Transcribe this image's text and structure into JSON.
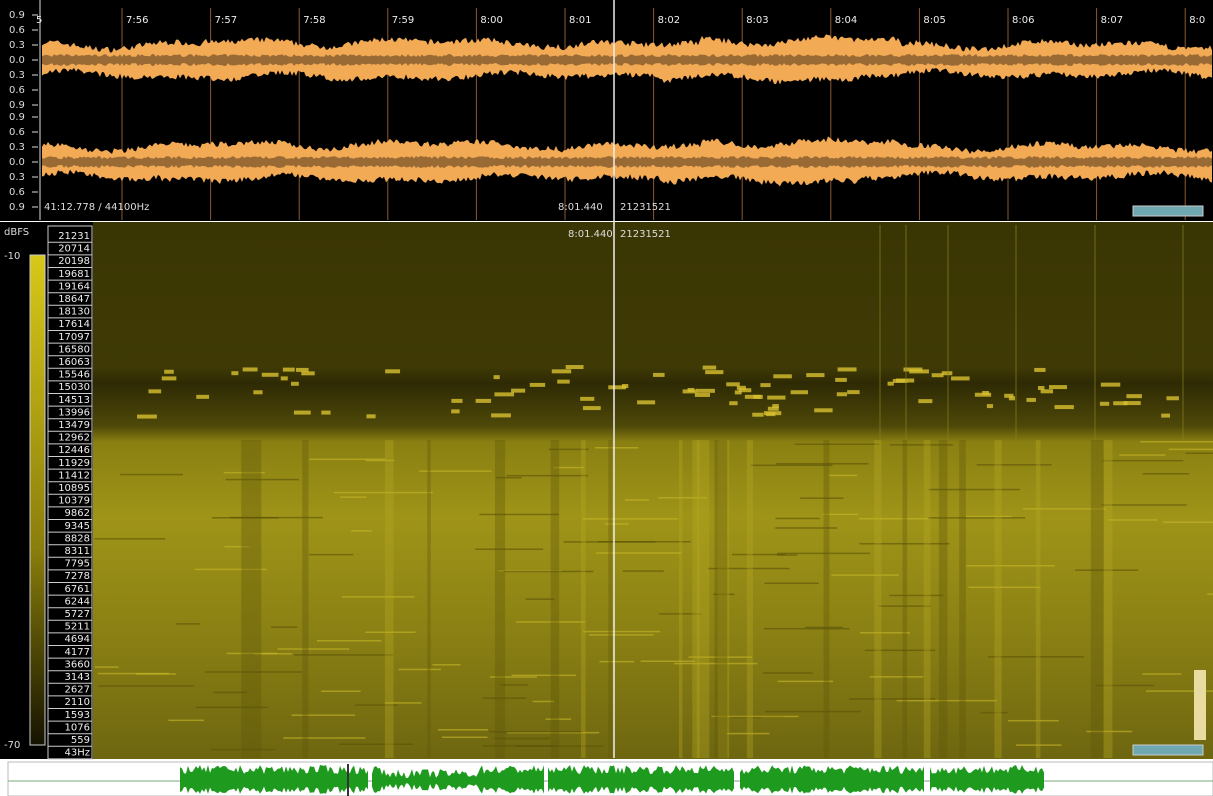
{
  "ruler": {
    "labels": [
      "5",
      "7:56",
      "7:57",
      "7:58",
      "7:59",
      "8:00",
      "8:01",
      "8:02",
      "8:03",
      "8:04",
      "8:05",
      "8:06",
      "8:07",
      "8:0"
    ]
  },
  "waveform": {
    "scale_top": [
      "0.9",
      "0.6",
      "0.3",
      "0.0",
      "0.3",
      "0.6",
      "0.9"
    ],
    "scale_bottom": [
      "0.9",
      "0.6",
      "0.3",
      "0.0",
      "0.3",
      "0.6",
      "0.9"
    ],
    "position": "41:12.778 / 44100Hz",
    "cursor_time": "8:01.440",
    "cursor_frame": "21231521"
  },
  "spectrogram": {
    "unit": "dBFS",
    "db_max": "-10",
    "db_min": "-70",
    "cursor_time": "8:01.440",
    "cursor_frame": "21231521",
    "freq_labels": [
      "21231",
      "20714",
      "20198",
      "19681",
      "19164",
      "18647",
      "18130",
      "17614",
      "17097",
      "16580",
      "16063",
      "15546",
      "15030",
      "14513",
      "13996",
      "13479",
      "12962",
      "12446",
      "11929",
      "11412",
      "10895",
      "10379",
      "9862",
      "9345",
      "8828",
      "8311",
      "7795",
      "7278",
      "6761",
      "6244",
      "5727",
      "5211",
      "4694",
      "4177",
      "3660",
      "3143",
      "2627",
      "2110",
      "1593",
      "1076",
      "559",
      "43Hz"
    ]
  }
}
